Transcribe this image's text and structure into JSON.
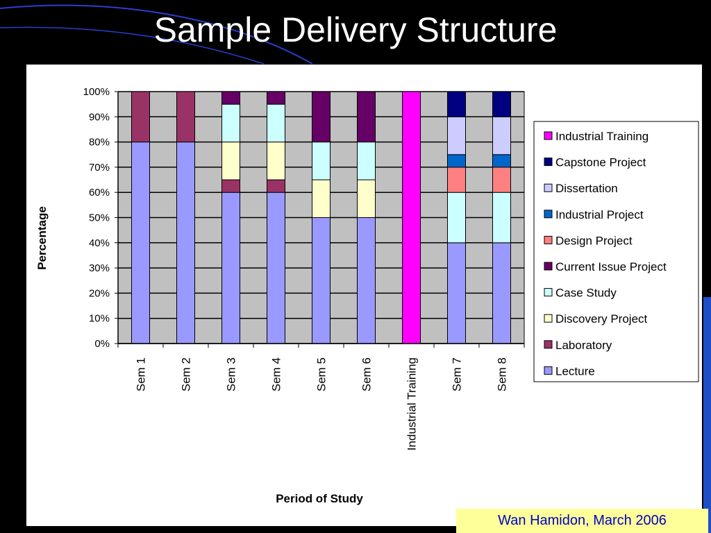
{
  "slide": {
    "title": "Sample Delivery Structure",
    "footer": "Wan Hamidon,  March 2006"
  },
  "colors": {
    "background": "#000000",
    "plot_area": "#c0c0c0",
    "footer_bg": "#ffff99",
    "footer_text": "#0000c0"
  },
  "chart_data": {
    "type": "bar",
    "stacked": "percent",
    "categories": [
      "Sem 1",
      "Sem 2",
      "Sem 3",
      "Sem 4",
      "Sem 5",
      "Sem 6",
      "Industrial Training",
      "Sem 7",
      "Sem 8"
    ],
    "series": [
      {
        "name": "Lecture",
        "color": "#9999ff",
        "values": [
          80,
          80,
          60,
          60,
          50,
          50,
          0,
          40,
          40
        ]
      },
      {
        "name": "Laboratory",
        "color": "#993366",
        "values": [
          20,
          20,
          5,
          5,
          0,
          0,
          0,
          0,
          0
        ]
      },
      {
        "name": "Discovery Project",
        "color": "#ffffcc",
        "values": [
          0,
          0,
          15,
          15,
          15,
          15,
          0,
          0,
          0
        ]
      },
      {
        "name": "Case Study",
        "color": "#ccffff",
        "values": [
          0,
          0,
          15,
          15,
          15,
          15,
          0,
          20,
          20
        ]
      },
      {
        "name": "Current Issue Project",
        "color": "#660066",
        "values": [
          0,
          0,
          5,
          5,
          20,
          20,
          0,
          0,
          0
        ]
      },
      {
        "name": "Design Project",
        "color": "#ff8080",
        "values": [
          0,
          0,
          0,
          0,
          0,
          0,
          0,
          10,
          10
        ]
      },
      {
        "name": "Industrial Project",
        "color": "#0066cc",
        "values": [
          0,
          0,
          0,
          0,
          0,
          0,
          0,
          5,
          5
        ]
      },
      {
        "name": "Dissertation",
        "color": "#ccccff",
        "values": [
          0,
          0,
          0,
          0,
          0,
          0,
          0,
          15,
          15
        ]
      },
      {
        "name": "Capstone Project",
        "color": "#000080",
        "values": [
          0,
          0,
          0,
          0,
          0,
          0,
          0,
          10,
          10
        ]
      },
      {
        "name": "Industrial Training",
        "color": "#ff00ff",
        "values": [
          0,
          0,
          0,
          0,
          0,
          0,
          100,
          0,
          0
        ]
      }
    ],
    "legend_order": [
      "Industrial Training",
      "Capstone Project",
      "Dissertation",
      "Industrial Project",
      "Design Project",
      "Current Issue Project",
      "Case Study",
      "Discovery Project",
      "Laboratory",
      "Lecture"
    ],
    "y_ticks": [
      "0%",
      "10%",
      "20%",
      "30%",
      "40%",
      "50%",
      "60%",
      "70%",
      "80%",
      "90%",
      "100%"
    ],
    "ylim": [
      0,
      100
    ],
    "xlabel": "Period of Study",
    "ylabel": "Percentage",
    "grid": true,
    "legend_position": "right"
  }
}
